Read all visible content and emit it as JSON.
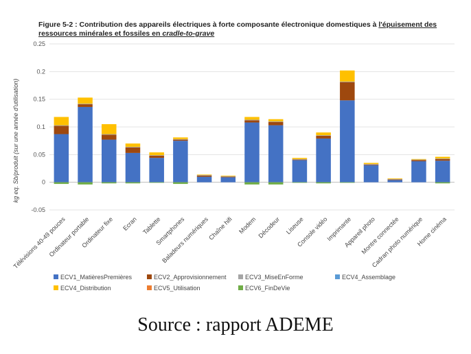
{
  "title_parts": {
    "prefix": "Figure 5-2 : Contribution des appareils électriques à forte composante électronique domestiques à ",
    "underlined": "l'épuisement des ressources minérales et fossiles en ",
    "italic": "cradle-to-grave"
  },
  "source_caption": "Source : rapport ADEME",
  "chart_data": {
    "type": "bar",
    "stacked": true,
    "title": "Figure 5-2 : Contribution des appareils électriques à forte composante électronique domestiques à l'épuisement des ressources minérales et fossiles en cradle-to-grave",
    "xlabel": "",
    "ylabel": "kg eq. Sb/produit (sur une année d'utilisation)",
    "ylim": [
      -0.05,
      0.25
    ],
    "yticks": [
      -0.05,
      0,
      0.05,
      0.1,
      0.15,
      0.2,
      0.25
    ],
    "ytick_labels": [
      "-0.05",
      "0",
      "0.05",
      "0.1",
      "0.15",
      "0.2",
      "0.25"
    ],
    "grid": true,
    "legend_position": "bottom",
    "categories": [
      "Télévisions 40-49 pouces",
      "Ordinateur portable",
      "Ordinateur fixe",
      "Ecran",
      "Tablette",
      "Smartphones",
      "Baladeurs numériques",
      "Chaîne hifi",
      "Modem",
      "Décodeur",
      "Liseuse",
      "Console vidéo",
      "Imprimante",
      "Appareil photo",
      "Montre connectée",
      "Cadran photo numérique",
      "Home cinéma"
    ],
    "series": [
      {
        "name": "ECV1_MatièresPremières",
        "color": "#4472C4",
        "values": [
          0.087,
          0.136,
          0.077,
          0.053,
          0.044,
          0.075,
          0.01,
          0.009,
          0.108,
          0.103,
          0.04,
          0.079,
          0.148,
          0.031,
          0.004,
          0.038,
          0.039
        ]
      },
      {
        "name": "ECV2_Approvisionnement",
        "color": "#9E480E",
        "values": [
          0.015,
          0.005,
          0.009,
          0.01,
          0.004,
          0.002,
          0.002,
          0.001,
          0.004,
          0.006,
          0.001,
          0.005,
          0.033,
          0.001,
          0.001,
          0.002,
          0.003
        ]
      },
      {
        "name": "ECV3_MiseEnForme",
        "color": "#A5A5A5",
        "values": [
          0.001,
          0.001,
          0.001,
          0.001,
          0.001,
          0.001,
          0.001,
          0.001,
          0.001,
          0.001,
          0.001,
          0.001,
          0.001,
          0.001,
          0.001,
          0.001,
          0.001
        ]
      },
      {
        "name": "ECV4_Assemblage",
        "color": "#5B9BD5",
        "values": [
          0,
          0,
          0,
          0,
          0,
          0,
          0,
          0,
          0,
          0,
          0,
          0,
          0,
          0,
          0,
          0,
          0
        ]
      },
      {
        "name": "ECV4_Distribution",
        "color": "#FFC000",
        "values": [
          0.015,
          0.011,
          0.018,
          0.006,
          0.005,
          0.003,
          0.001,
          0.001,
          0.005,
          0.004,
          0.002,
          0.005,
          0.02,
          0.002,
          0.001,
          0.001,
          0.003
        ]
      },
      {
        "name": "ECV5_Utilisation",
        "color": "#ED7D31",
        "values": [
          0,
          0,
          0,
          0,
          0,
          0,
          0,
          0,
          0,
          0,
          0,
          0,
          0,
          0,
          0,
          0,
          0
        ]
      },
      {
        "name": "ECV6_FinDeVie",
        "color": "#70AD47",
        "values": [
          -0.003,
          -0.004,
          -0.002,
          -0.002,
          -0.001,
          -0.003,
          0,
          0,
          -0.004,
          -0.004,
          -0.001,
          -0.002,
          -0.001,
          0,
          0,
          0,
          -0.002
        ]
      }
    ]
  }
}
